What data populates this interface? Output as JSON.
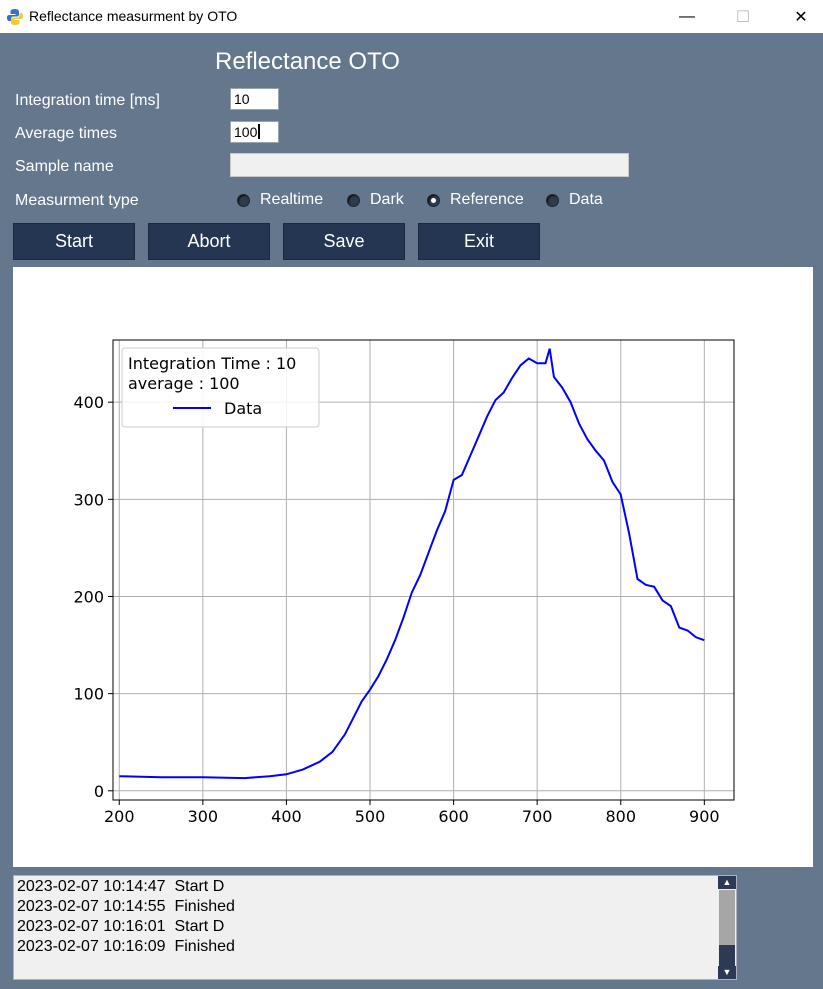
{
  "window": {
    "title": "Reflectance measurment by OTO",
    "minimize": "—",
    "maximize": "☐",
    "close": "✕"
  },
  "heading": "Reflectance OTO",
  "form": {
    "integration_label": "Integration time [ms]",
    "integration_value": "10",
    "average_label": "Average times",
    "average_value": "100",
    "sample_label": "Sample name",
    "sample_value": "",
    "type_label": "Measurment type",
    "types": [
      "Realtime",
      "Dark",
      "Reference",
      "Data"
    ],
    "selected_type": "Reference"
  },
  "buttons": {
    "start": "Start",
    "abort": "Abort",
    "save": "Save",
    "exit": "Exit"
  },
  "chart_data": {
    "type": "line",
    "xlim": [
      200,
      900
    ],
    "ylim": [
      0,
      460
    ],
    "xticks": [
      200,
      300,
      400,
      500,
      600,
      700,
      800,
      900
    ],
    "yticks": [
      0,
      100,
      200,
      300,
      400
    ],
    "grid": true,
    "legend_placement": "top-left",
    "legend_title": [
      "Integration Time : 10",
      "average : 100"
    ],
    "series": [
      {
        "name": "Data",
        "color": "#0000ff",
        "x": [
          200,
          250,
          300,
          350,
          380,
          400,
          420,
          440,
          455,
          470,
          480,
          490,
          500,
          510,
          520,
          530,
          540,
          550,
          560,
          570,
          580,
          590,
          600,
          610,
          620,
          630,
          640,
          650,
          660,
          670,
          680,
          690,
          700,
          710,
          715,
          720,
          730,
          740,
          750,
          760,
          770,
          780,
          790,
          800,
          810,
          820,
          830,
          840,
          850,
          860,
          870,
          880,
          890,
          900
        ],
        "y": [
          15,
          14,
          14,
          13,
          15,
          17,
          22,
          30,
          40,
          58,
          75,
          92,
          104,
          118,
          135,
          155,
          178,
          204,
          222,
          245,
          268,
          288,
          320,
          325,
          345,
          365,
          385,
          402,
          410,
          425,
          438,
          445,
          440,
          440,
          455,
          426,
          415,
          400,
          378,
          362,
          350,
          340,
          318,
          305,
          265,
          218,
          212,
          210,
          196,
          190,
          168,
          165,
          158,
          155
        ]
      }
    ]
  },
  "log": {
    "lines": [
      "2023-02-07 10:14:47  Start D",
      "2023-02-07 10:14:55  Finished",
      "2023-02-07 10:16:01  Start D",
      "2023-02-07 10:16:09  Finished"
    ]
  }
}
